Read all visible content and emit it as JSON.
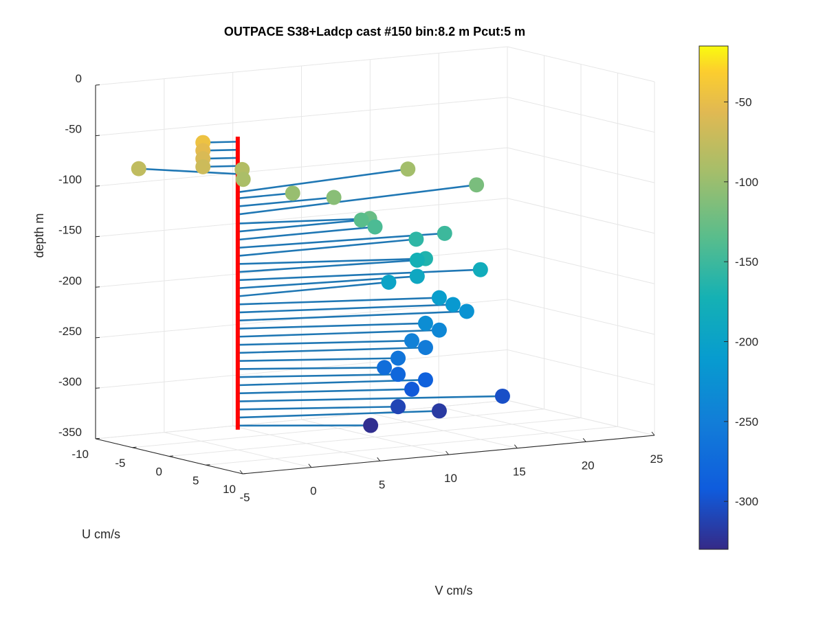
{
  "chart_data": {
    "type": "scatter",
    "title": "OUTPACE S38+Ladcp cast #150 bin:8.2 m  Pcut:5 m",
    "xlabel": "V cm/s",
    "ylabel": "U cm/s",
    "zlabel": "depth m",
    "xlim": [
      -5,
      25
    ],
    "ylim": [
      -10,
      10
    ],
    "zlim": [
      -350,
      0
    ],
    "x_ticks": [
      "-5",
      "0",
      "5",
      "10",
      "15",
      "20",
      "25"
    ],
    "y_ticks": [
      "-10",
      "-5",
      "0",
      "5",
      "10"
    ],
    "z_ticks": [
      "0",
      "-50",
      "-100",
      "-150",
      "-200",
      "-250",
      "-300",
      "-350"
    ],
    "grid": true,
    "colorbar": {
      "colormap": "parula",
      "range": [
        -330,
        -15
      ],
      "ticks": [
        "-50",
        "-100",
        "-150",
        "-200",
        "-250",
        "-300"
      ]
    },
    "vertical_line": {
      "color": "#ff0000",
      "x": 0,
      "y": 0,
      "z_range": [
        -40,
        -330
      ]
    },
    "series": [
      {
        "points": [
          {
            "u": -1,
            "v": -2,
            "depth": -45
          },
          {
            "u": -1,
            "v": -2,
            "depth": -53
          },
          {
            "u": -1,
            "v": -2,
            "depth": -61
          },
          {
            "u": -1,
            "v": -2,
            "depth": -69
          },
          {
            "u": -6,
            "v": -4,
            "depth": -77
          },
          {
            "u": -5,
            "v": 3,
            "depth": -85
          },
          {
            "u": -3,
            "v": 2,
            "depth": -90
          },
          {
            "u": -3,
            "v": 14,
            "depth": -95
          },
          {
            "u": 0,
            "v": 4,
            "depth": -101
          },
          {
            "u": 0,
            "v": 7,
            "depth": -109
          },
          {
            "u": -3,
            "v": 19,
            "depth": -117
          },
          {
            "u": 3,
            "v": 8,
            "depth": -126
          },
          {
            "u": 0,
            "v": 9,
            "depth": -134
          },
          {
            "u": 0,
            "v": 10,
            "depth": -142
          },
          {
            "u": 2,
            "v": 14,
            "depth": -150
          },
          {
            "u": 0,
            "v": 13,
            "depth": -158
          },
          {
            "u": 5,
            "v": 11,
            "depth": -166
          },
          {
            "u": 2,
            "v": 12,
            "depth": -174
          },
          {
            "u": 5,
            "v": 15,
            "depth": -182
          },
          {
            "u": 2,
            "v": 12,
            "depth": -190
          },
          {
            "u": 0,
            "v": 11,
            "depth": -198
          },
          {
            "u": 5,
            "v": 12,
            "depth": -206
          },
          {
            "u": 5,
            "v": 13,
            "depth": -214
          },
          {
            "u": 5,
            "v": 14,
            "depth": -222
          },
          {
            "u": 5,
            "v": 11,
            "depth": -230
          },
          {
            "u": 5,
            "v": 12,
            "depth": -238
          },
          {
            "u": 5,
            "v": 10,
            "depth": -246
          },
          {
            "u": 5,
            "v": 11,
            "depth": -254
          },
          {
            "u": 5,
            "v": 9,
            "depth": -262
          },
          {
            "u": 5,
            "v": 8,
            "depth": -270
          },
          {
            "u": 5,
            "v": 9,
            "depth": -278
          },
          {
            "u": 5,
            "v": 11,
            "depth": -286
          },
          {
            "u": 5,
            "v": 10,
            "depth": -294
          },
          {
            "u": 8,
            "v": 15,
            "depth": -302
          },
          {
            "u": 5,
            "v": 9,
            "depth": -310
          },
          {
            "u": 5,
            "v": 12,
            "depth": -318
          },
          {
            "u": 5,
            "v": 7,
            "depth": -326
          }
        ]
      }
    ]
  }
}
